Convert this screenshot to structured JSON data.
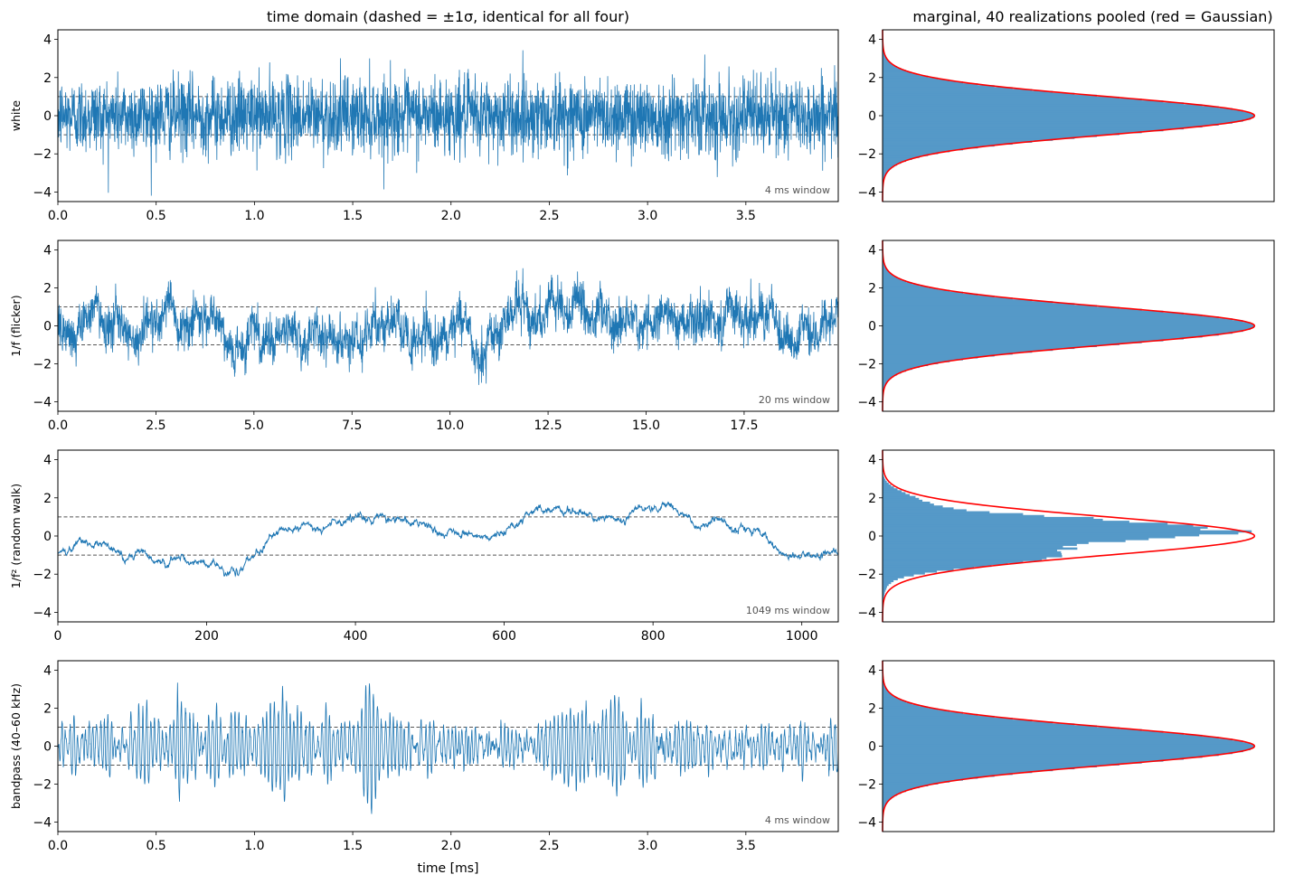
{
  "chart_data": [
    {
      "type": "line",
      "panel": "time-white",
      "title": "time domain (dashed = ±1σ, identical for all four)",
      "ylabel": "white",
      "xlabel": "",
      "xlim": [
        0,
        3.97
      ],
      "ylim": [
        -4.5,
        4.5
      ],
      "xticks": [
        0.0,
        0.5,
        1.0,
        1.5,
        2.0,
        2.5,
        3.0,
        3.5
      ],
      "xtick_labels": [
        "0.0",
        "0.5",
        "1.0",
        "1.5",
        "2.0",
        "2.5",
        "3.0",
        "3.5"
      ],
      "yticks": [
        -4,
        -2,
        0,
        2,
        4
      ],
      "ytick_labels": [
        "−4",
        "−2",
        "0",
        "2",
        "4"
      ],
      "annotation": "4 ms window",
      "sigma_lines": [
        -1,
        1
      ],
      "series_kind": "white",
      "color": "#1f77b4"
    },
    {
      "type": "line",
      "panel": "time-flicker",
      "title": "",
      "ylabel": "1/f (flicker)",
      "xlabel": "",
      "xlim": [
        0,
        19.9
      ],
      "ylim": [
        -4.5,
        4.5
      ],
      "xticks": [
        0.0,
        2.5,
        5.0,
        7.5,
        10.0,
        12.5,
        15.0,
        17.5
      ],
      "xtick_labels": [
        "0.0",
        "2.5",
        "5.0",
        "7.5",
        "10.0",
        "12.5",
        "15.0",
        "17.5"
      ],
      "yticks": [
        -4,
        -2,
        0,
        2,
        4
      ],
      "ytick_labels": [
        "−4",
        "−2",
        "0",
        "2",
        "4"
      ],
      "annotation": "20 ms window",
      "sigma_lines": [
        -1,
        1
      ],
      "series_kind": "flicker",
      "color": "#1f77b4"
    },
    {
      "type": "line",
      "panel": "time-randomwalk",
      "title": "",
      "ylabel": "1/f² (random walk)",
      "xlabel": "",
      "xlim": [
        0,
        1049
      ],
      "ylim": [
        -4.5,
        4.5
      ],
      "xticks": [
        0,
        200,
        400,
        600,
        800,
        1000
      ],
      "xtick_labels": [
        "0",
        "200",
        "400",
        "600",
        "800",
        "1000"
      ],
      "yticks": [
        -4,
        -2,
        0,
        2,
        4
      ],
      "ytick_labels": [
        "−4",
        "−2",
        "0",
        "2",
        "4"
      ],
      "annotation": "1049 ms window",
      "sigma_lines": [
        -1,
        1
      ],
      "series_kind": "randomwalk",
      "anchors": [
        [
          0,
          -0.9
        ],
        [
          40,
          -0.4
        ],
        [
          100,
          -1.0
        ],
        [
          150,
          -1.1
        ],
        [
          200,
          -1.4
        ],
        [
          240,
          -1.9
        ],
        [
          270,
          -0.8
        ],
        [
          300,
          0.6
        ],
        [
          350,
          0.5
        ],
        [
          400,
          0.9
        ],
        [
          430,
          1.1
        ],
        [
          480,
          0.8
        ],
        [
          520,
          0.1
        ],
        [
          580,
          0.0
        ],
        [
          620,
          0.7
        ],
        [
          650,
          1.7
        ],
        [
          700,
          1.1
        ],
        [
          760,
          0.9
        ],
        [
          820,
          1.6
        ],
        [
          860,
          0.8
        ],
        [
          940,
          0.3
        ],
        [
          980,
          -1.0
        ],
        [
          1049,
          -1.0
        ]
      ],
      "color": "#1f77b4"
    },
    {
      "type": "line",
      "panel": "time-bandpass",
      "title": "",
      "ylabel": "bandpass (40–60 kHz)",
      "xlabel": "time [ms]",
      "xlim": [
        0,
        3.97
      ],
      "ylim": [
        -4.5,
        4.5
      ],
      "xticks": [
        0.0,
        0.5,
        1.0,
        1.5,
        2.0,
        2.5,
        3.0,
        3.5
      ],
      "xtick_labels": [
        "0.0",
        "0.5",
        "1.0",
        "1.5",
        "2.0",
        "2.5",
        "3.0",
        "3.5"
      ],
      "yticks": [
        -4,
        -2,
        0,
        2,
        4
      ],
      "ytick_labels": [
        "−4",
        "−2",
        "0",
        "2",
        "4"
      ],
      "annotation": "4 ms window",
      "sigma_lines": [
        -1,
        1
      ],
      "series_kind": "bandpass",
      "color": "#1f77b4"
    },
    {
      "type": "area",
      "panel": "marginal-white",
      "title": "marginal, 40 realizations pooled (red = Gaussian)",
      "ylim": [
        -4.5,
        4.5
      ],
      "yticks": [
        -4,
        -2,
        0,
        2,
        4
      ],
      "ytick_labels": [
        "−4",
        "−2",
        "0",
        "2",
        "4"
      ],
      "gaussian": {
        "mean": 0,
        "sigma": 1
      },
      "histogram": "gaussian",
      "hist_color": "#5599c8",
      "gaussian_color": "#ff0000"
    },
    {
      "type": "area",
      "panel": "marginal-flicker",
      "title": "",
      "ylim": [
        -4.5,
        4.5
      ],
      "yticks": [
        -4,
        -2,
        0,
        2,
        4
      ],
      "ytick_labels": [
        "−4",
        "−2",
        "0",
        "2",
        "4"
      ],
      "gaussian": {
        "mean": 0,
        "sigma": 1
      },
      "histogram": "gaussian",
      "hist_color": "#5599c8",
      "gaussian_color": "#ff0000"
    },
    {
      "type": "area",
      "panel": "marginal-randomwalk",
      "title": "",
      "ylim": [
        -4.5,
        4.5
      ],
      "yticks": [
        -4,
        -2,
        0,
        2,
        4
      ],
      "ytick_labels": [
        "−4",
        "−2",
        "0",
        "2",
        "4"
      ],
      "gaussian": {
        "mean": 0,
        "sigma": 1
      },
      "histogram": "ragged",
      "hist_color": "#5599c8",
      "gaussian_color": "#ff0000"
    },
    {
      "type": "area",
      "panel": "marginal-bandpass",
      "title": "",
      "ylim": [
        -4.5,
        4.5
      ],
      "yticks": [
        -4,
        -2,
        0,
        2,
        4
      ],
      "ytick_labels": [
        "−4",
        "−2",
        "0",
        "2",
        "4"
      ],
      "gaussian": {
        "mean": 0,
        "sigma": 1
      },
      "histogram": "gaussian",
      "hist_color": "#5599c8",
      "gaussian_color": "#ff0000"
    }
  ]
}
